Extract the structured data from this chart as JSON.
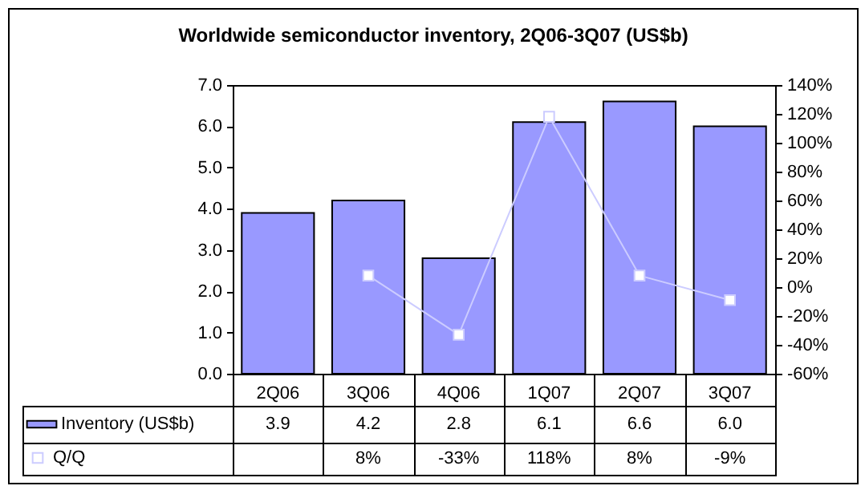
{
  "chart_data": {
    "type": "bar",
    "title": "Worldwide semiconductor inventory, 2Q06-3Q07 (US$b)",
    "categories": [
      "2Q06",
      "3Q06",
      "4Q06",
      "1Q07",
      "2Q07",
      "3Q07"
    ],
    "series": [
      {
        "name": "Inventory (US$b)",
        "color": "#9999ff",
        "values": [
          3.9,
          4.2,
          2.8,
          6.1,
          6.6,
          6.0
        ],
        "value_labels": [
          "3.9",
          "4.2",
          "2.8",
          "6.1",
          "6.6",
          "6.0"
        ]
      },
      {
        "name": "Q/Q",
        "type": "line",
        "axis": "y2",
        "color": "#ccccff",
        "values": [
          null,
          8,
          -33,
          118,
          8,
          -9
        ],
        "value_labels": [
          null,
          "8%",
          "-33%",
          "118%",
          "8%",
          "-9%"
        ]
      }
    ],
    "ylim": [
      0,
      7
    ],
    "yticks": [
      {
        "value": 0,
        "label": "0.0"
      },
      {
        "value": 1,
        "label": "1.0"
      },
      {
        "value": 2,
        "label": "2.0"
      },
      {
        "value": 3,
        "label": "3.0"
      },
      {
        "value": 4,
        "label": "4.0"
      },
      {
        "value": 5,
        "label": "5.0"
      },
      {
        "value": 6,
        "label": "6.0"
      },
      {
        "value": 7,
        "label": "7.0"
      }
    ],
    "y2lim": [
      -60,
      140
    ],
    "y2ticks": [
      {
        "value": -60,
        "label": "-60%"
      },
      {
        "value": -40,
        "label": "-40%"
      },
      {
        "value": -20,
        "label": "-20%"
      },
      {
        "value": 0,
        "label": "0%"
      },
      {
        "value": 20,
        "label": "20%"
      },
      {
        "value": 40,
        "label": "40%"
      },
      {
        "value": 60,
        "label": "60%"
      },
      {
        "value": 80,
        "label": "80%"
      },
      {
        "value": 100,
        "label": "100%"
      },
      {
        "value": 120,
        "label": "120%"
      },
      {
        "value": 140,
        "label": "140%"
      }
    ],
    "legend": "bottom left",
    "marker": "square"
  }
}
